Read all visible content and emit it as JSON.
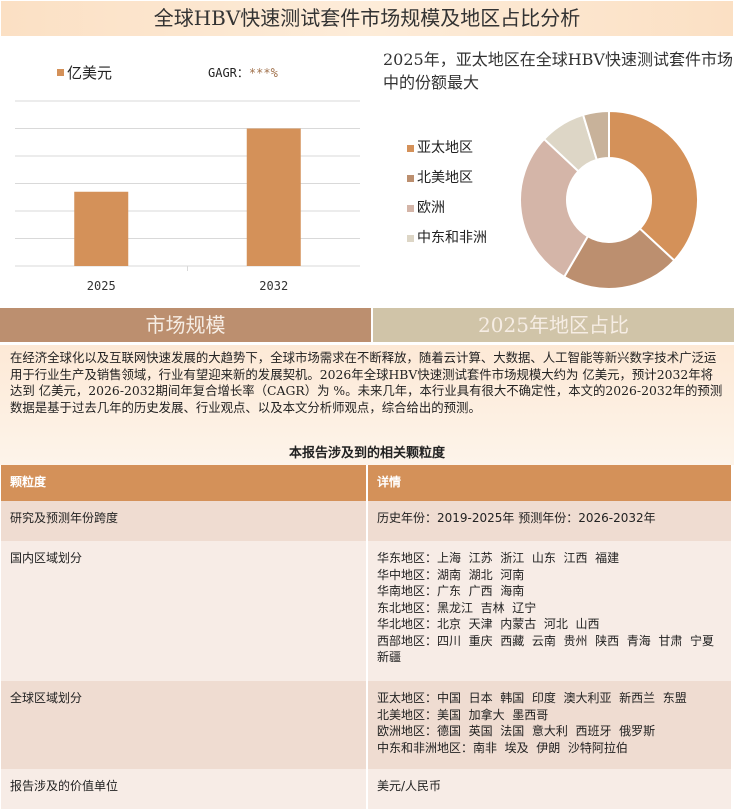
{
  "title": "全球HBV快速测试套件市场规模及地区占比分析",
  "colors": {
    "bar": "#d49159",
    "sec_left": "#bc8f6f",
    "sec_right": "#d0c4a8",
    "table_header": "#d49159"
  },
  "chart_data": [
    {
      "type": "bar",
      "categories": [
        "2025",
        "2032"
      ],
      "values": [
        2.7,
        5.0
      ],
      "legend": "亿美元",
      "gagr_label": "GAGR：",
      "gagr_value": "***%",
      "ylim": [
        0,
        6
      ],
      "grid": true
    },
    {
      "type": "pie",
      "donut": true,
      "title": "2025年，亚太地区在全球HBV快速测试套件市场中的份额最大",
      "labels": [
        "亚太地区",
        "北美地区",
        "欧洲",
        "中东和非洲",
        ""
      ],
      "values": [
        36.9,
        21.5,
        28.6,
        8.3,
        4.7
      ],
      "colors": [
        "#d49159",
        "#bc8f6f",
        "#d4b5a8",
        "#ddd6c6",
        "#c8b29a"
      ],
      "legend": "left"
    }
  ],
  "sections": {
    "left": "市场规模",
    "right": "2025年地区占比"
  },
  "paragraph": "在经济全球化以及互联网快速发展的大趋势下，全球市场需求在不断释放，随着云计算、大数据、人工智能等新兴数字技术广泛运用于行业生产及销售领域，行业有望迎来新的发展契机。2026年全球HBV快速测试套件市场规模大约为 亿美元，预计2032年将达到 亿美元，2026-2032期间年复合增长率（CAGR）为 %。未来几年，本行业具有很大不确定性，本文的2026-2032年的预测数据是基于过去几年的历史发展、行业观点、以及本文分析师观点，综合给出的预测。",
  "table": {
    "title": "本报告涉及到的相关颗粒度",
    "headers": [
      "颗粒度",
      "详情"
    ],
    "rows": [
      {
        "k": "研究及预测年份跨度",
        "v": [
          "历史年份：2019-2025年 预测年份：2026-2032年"
        ]
      },
      {
        "k": "国内区域划分",
        "v": [
          "华东地区：上海  江苏  浙江  山东  江西  福建",
          "华中地区：湖南  湖北  河南",
          "华南地区：广东  广西  海南",
          "东北地区：黑龙江  吉林  辽宁",
          "华北地区：北京  天津  内蒙古  河北  山西",
          "西部地区：四川  重庆  西藏  云南  贵州  陕西  青海  甘肃  宁夏  新疆"
        ]
      },
      {
        "k": "全球区域划分",
        "v": [
          "亚太地区：中国  日本  韩国  印度  澳大利亚  新西兰  东盟",
          "北美地区：美国  加拿大  墨西哥",
          "欧洲地区：德国  英国  法国  意大利  西班牙  俄罗斯",
          "中东和非洲地区：南非  埃及  伊朗  沙特阿拉伯"
        ]
      },
      {
        "k": "报告涉及的价值单位",
        "v": [
          "美元/人民币"
        ]
      }
    ]
  }
}
